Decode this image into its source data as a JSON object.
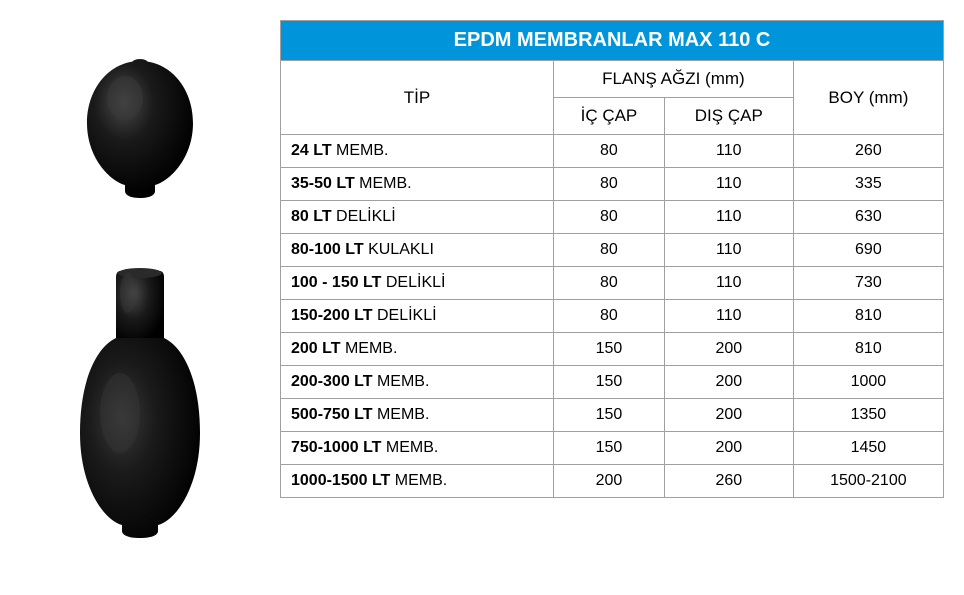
{
  "title": "EPDM MEMBRANLAR  MAX 110 C",
  "headers": {
    "tip": "TİP",
    "flans": "FLANŞ AĞZI (mm)",
    "ic_cap": "İÇ ÇAP",
    "dis_cap": "DIŞ ÇAP",
    "boy": "BOY (mm)"
  },
  "rows": [
    {
      "type_bold": "24 LT",
      "type_normal": " MEMB.",
      "ic": "80",
      "dis": "110",
      "boy": "260"
    },
    {
      "type_bold": "35-50  LT",
      "type_normal": " MEMB.",
      "ic": "80",
      "dis": "110",
      "boy": "335"
    },
    {
      "type_bold": "80 LT",
      "type_normal": " DELİKLİ",
      "ic": "80",
      "dis": "110",
      "boy": "630"
    },
    {
      "type_bold": "80-100 LT",
      "type_normal": " KULAKLI",
      "ic": "80",
      "dis": "110",
      "boy": "690"
    },
    {
      "type_bold": "100 - 150 LT",
      "type_normal": " DELİKLİ",
      "ic": "80",
      "dis": "110",
      "boy": "730"
    },
    {
      "type_bold": "150-200 LT",
      "type_normal": " DELİKLİ",
      "ic": "80",
      "dis": "110",
      "boy": "810"
    },
    {
      "type_bold": "200 LT ",
      "type_normal": " MEMB.",
      "ic": "150",
      "dis": "200",
      "boy": "810"
    },
    {
      "type_bold": "200-300 LT",
      "type_normal": " MEMB.",
      "ic": "150",
      "dis": "200",
      "boy": "1000"
    },
    {
      "type_bold": "500-750 LT",
      "type_normal": " MEMB.",
      "ic": "150",
      "dis": "200",
      "boy": "1350"
    },
    {
      "type_bold": "750-1000 LT",
      "type_normal": " MEMB.",
      "ic": "150",
      "dis": "200",
      "boy": "1450"
    },
    {
      "type_bold": "1000-1500 LT",
      "type_normal": " MEMB.",
      "ic": "200",
      "dis": "260",
      "boy": "1500-2100"
    }
  ],
  "colors": {
    "title_bg": "#0095da",
    "title_text": "#ffffff",
    "border": "#a0a0a0",
    "text": "#000000",
    "membrane": "#1a1a1a"
  }
}
